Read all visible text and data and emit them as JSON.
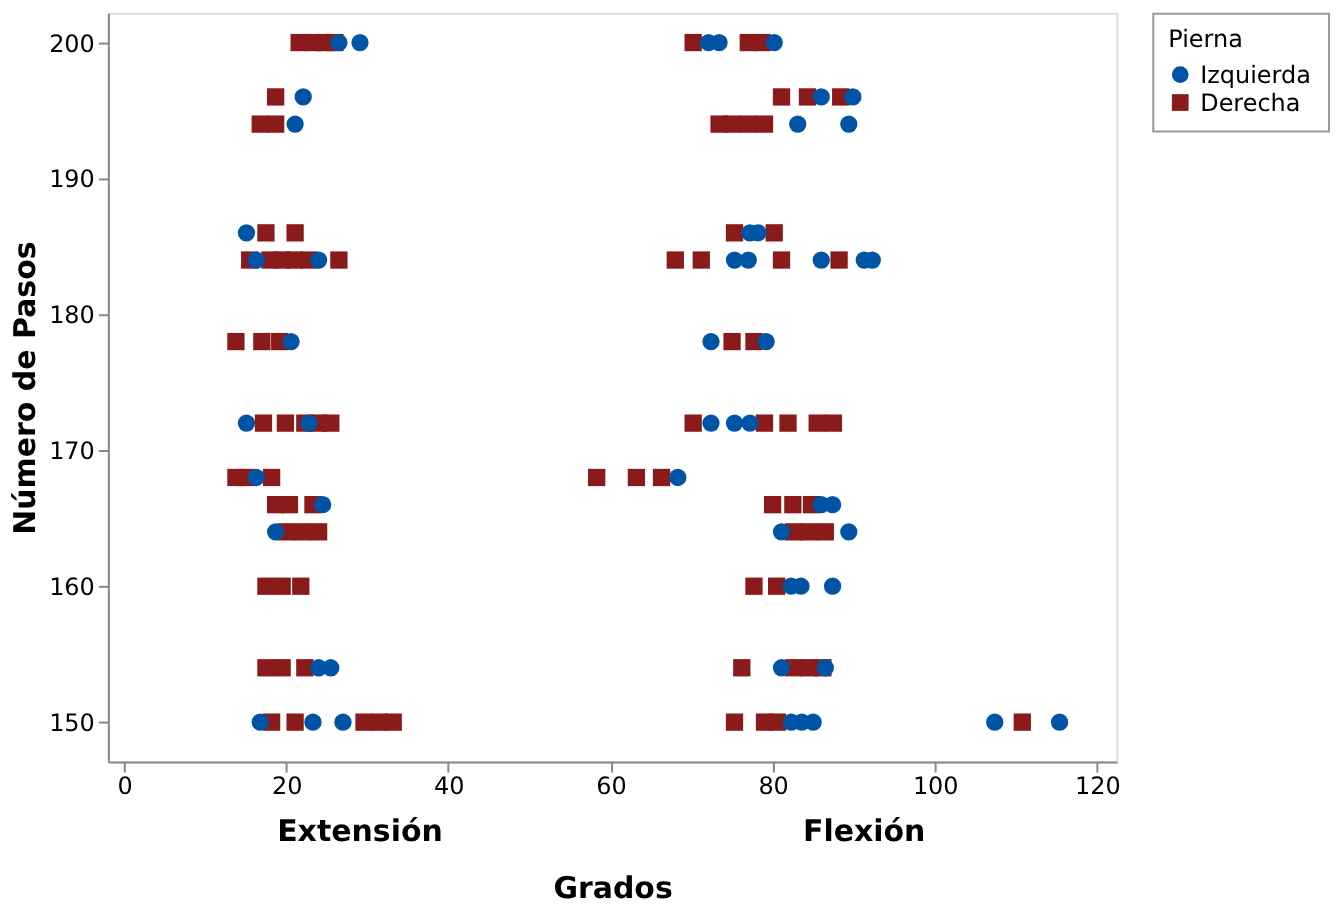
{
  "chart_data": {
    "type": "scatter",
    "xlabel": "Grados",
    "ylabel": "Número de Pasos",
    "legend_title": "Pierna",
    "legend": "top right",
    "grid": false,
    "xlim": [
      -2,
      122.4
    ],
    "xticks": [
      0,
      20,
      40,
      60,
      80,
      100,
      120
    ],
    "ylim": [
      147.1,
      202.2
    ],
    "yticks": [
      150,
      160,
      170,
      180,
      190,
      200
    ],
    "annotations": [
      "Extensión",
      "Flexión"
    ],
    "series": [
      {
        "name": "Izquierda",
        "color": "#0054a6",
        "marker": "circle",
        "x": [
          26.5,
          29.1,
          72.1,
          73.4,
          80.2,
          22.1,
          86.0,
          89.9,
          21.1,
          83.1,
          89.4,
          15.1,
          77.2,
          78.2,
          16.3,
          24.0,
          75.3,
          77.0,
          86.0,
          91.3,
          92.3,
          20.6,
          72.4,
          79.2,
          15.1,
          22.8,
          72.4,
          75.3,
          77.2,
          16.3,
          68.3,
          24.5,
          86.0,
          87.4,
          18.7,
          81.1,
          89.4,
          82.3,
          83.5,
          87.4,
          24.0,
          25.5,
          81.1,
          86.5,
          16.8,
          23.3,
          27.0,
          82.3,
          83.6,
          85.0,
          107.4,
          115.4
        ],
        "values": [
          200,
          200,
          200,
          200,
          200,
          196,
          196,
          196,
          194,
          194,
          194,
          186,
          186,
          186,
          184,
          184,
          184,
          184,
          184,
          184,
          184,
          178,
          178,
          178,
          172,
          172,
          172,
          172,
          172,
          168,
          168,
          166,
          166,
          166,
          164,
          164,
          164,
          160,
          160,
          160,
          154,
          154,
          154,
          154,
          150,
          150,
          150,
          150,
          150,
          150,
          150,
          150
        ]
      },
      {
        "name": "Derecha",
        "color": "#8b1a1a",
        "marker": "square",
        "x": [
          21.6,
          23.3,
          24.8,
          26.0,
          70.2,
          77.0,
          78.7,
          18.7,
          81.1,
          84.3,
          88.4,
          16.8,
          18.7,
          73.4,
          75.0,
          77.0,
          79.0,
          17.5,
          21.1,
          75.3,
          80.2,
          15.5,
          18.0,
          19.5,
          21.0,
          22.8,
          26.5,
          68.0,
          71.2,
          81.1,
          88.2,
          13.8,
          17.0,
          19.2,
          75.0,
          77.7,
          17.2,
          19.9,
          22.3,
          24.0,
          25.5,
          70.2,
          79.0,
          81.9,
          85.5,
          87.5,
          13.8,
          15.1,
          18.2,
          58.3,
          63.2,
          66.3,
          18.7,
          20.4,
          23.3,
          80.0,
          82.5,
          84.8,
          20.0,
          22.0,
          24.0,
          82.6,
          84.5,
          86.5,
          17.5,
          19.5,
          21.8,
          77.7,
          80.5,
          17.5,
          19.5,
          22.3,
          76.2,
          82.6,
          84.5,
          86.2,
          18.2,
          21.1,
          29.6,
          31.5,
          33.2,
          75.3,
          79.0,
          80.6,
          110.8
        ],
        "values": [
          200,
          200,
          200,
          200,
          200,
          200,
          200,
          196,
          196,
          196,
          196,
          194,
          194,
          194,
          194,
          194,
          194,
          186,
          186,
          186,
          186,
          184,
          184,
          184,
          184,
          184,
          184,
          184,
          184,
          184,
          184,
          178,
          178,
          178,
          178,
          178,
          172,
          172,
          172,
          172,
          172,
          172,
          172,
          172,
          172,
          172,
          168,
          168,
          168,
          168,
          168,
          168,
          166,
          166,
          166,
          166,
          166,
          166,
          164,
          164,
          164,
          164,
          164,
          164,
          160,
          160,
          160,
          160,
          160,
          154,
          154,
          154,
          154,
          154,
          154,
          154,
          150,
          150,
          150,
          150,
          150,
          150,
          150,
          150,
          150
        ]
      }
    ]
  }
}
